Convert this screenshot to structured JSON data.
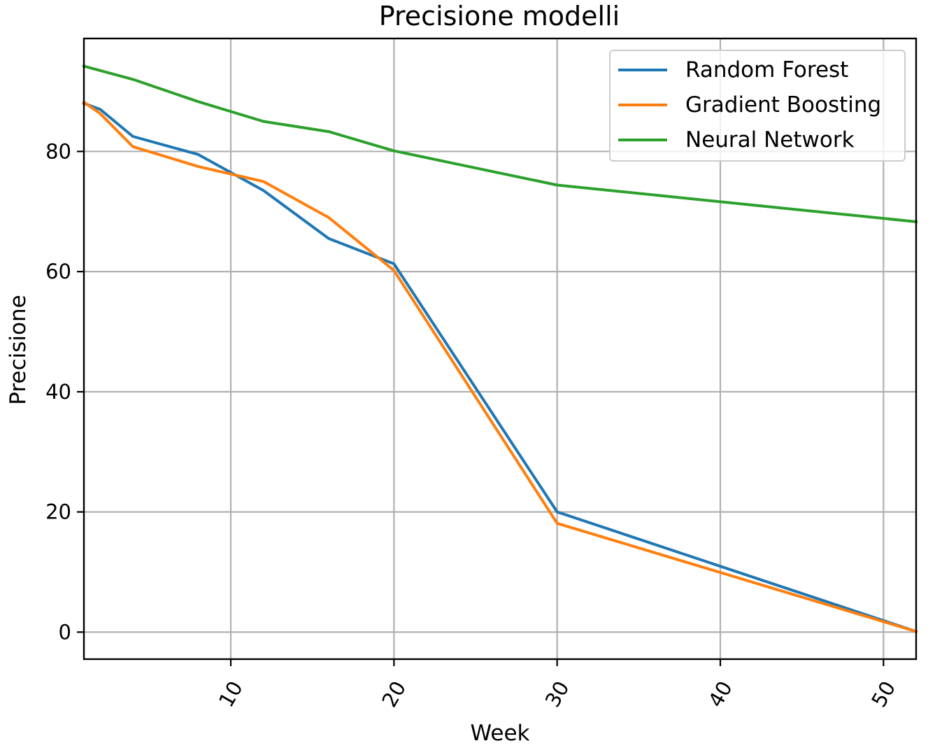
{
  "chart_data": {
    "type": "line",
    "title": "Precisione modelli",
    "xlabel": "Week",
    "ylabel": "Precisione",
    "xlim": [
      1,
      52
    ],
    "ylim": [
      -4.5,
      98.8
    ],
    "xticks": [
      10,
      20,
      30,
      40,
      50
    ],
    "yticks": [
      0,
      20,
      40,
      60,
      80
    ],
    "grid": true,
    "legend_position": "top-right",
    "series": [
      {
        "name": "Random Forest",
        "color": "#1f77b4",
        "x": [
          1,
          2,
          4,
          8,
          12,
          16,
          20,
          30,
          52
        ],
        "y": [
          88.0,
          87.0,
          82.5,
          79.5,
          73.5,
          65.5,
          61.3,
          20.0,
          0.1
        ]
      },
      {
        "name": "Gradient Boosting",
        "color": "#ff7f0e",
        "x": [
          1,
          2,
          4,
          8,
          12,
          16,
          20,
          30,
          52
        ],
        "y": [
          88.2,
          86.3,
          80.8,
          77.5,
          75.0,
          69.0,
          60.2,
          18.1,
          0.1
        ]
      },
      {
        "name": "Neural Network",
        "color": "#2ca02c",
        "x": [
          1,
          4,
          8,
          12,
          16,
          20,
          30,
          52
        ],
        "y": [
          94.2,
          92.0,
          88.3,
          85.0,
          83.3,
          80.1,
          74.4,
          68.3
        ]
      }
    ]
  }
}
